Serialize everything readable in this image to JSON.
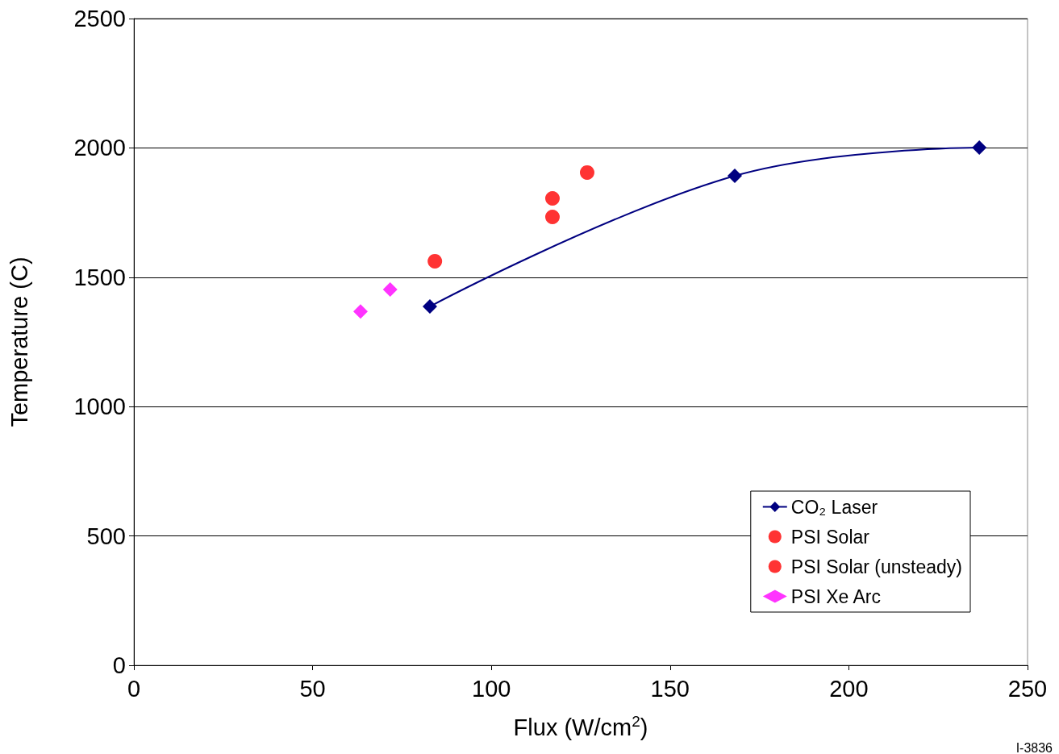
{
  "chart_data": {
    "type": "scatter",
    "xlabel": "Flux (W/cm$^{2}$)",
    "ylabel": "Temperature (C)",
    "xlim": [
      0,
      250
    ],
    "xticks": [
      0,
      50,
      100,
      150,
      200,
      250
    ],
    "ylim": [
      0,
      2500
    ],
    "yticks": [
      0,
      500,
      1000,
      1500,
      2000,
      2500
    ],
    "grid": "y",
    "legend": "bottom right",
    "annotations": [
      "I-3836"
    ],
    "series": [
      {
        "name": "CO₂ Laser",
        "type": "line",
        "marker": "diamond",
        "color": "#000080",
        "x": [
          82.8,
          168.1,
          236.5
        ],
        "values": [
          1387,
          1892,
          2001
        ]
      },
      {
        "name": "PSI Solar",
        "marker": "circle",
        "color": "#ff0000",
        "x": [
          84.2,
          117.1,
          117.1
        ],
        "values": [
          1562,
          1805,
          1733
        ]
      },
      {
        "name": "PSI Solar (unsteady)",
        "marker": "circle",
        "color": "#ff0000",
        "x": [
          126.8
        ],
        "values": [
          1905
        ]
      },
      {
        "name": "PSI Xe Arc",
        "marker": "diamond",
        "color": "#ff00ff",
        "x": [
          63.4,
          71.7
        ],
        "values": [
          1368,
          1453
        ]
      }
    ]
  }
}
